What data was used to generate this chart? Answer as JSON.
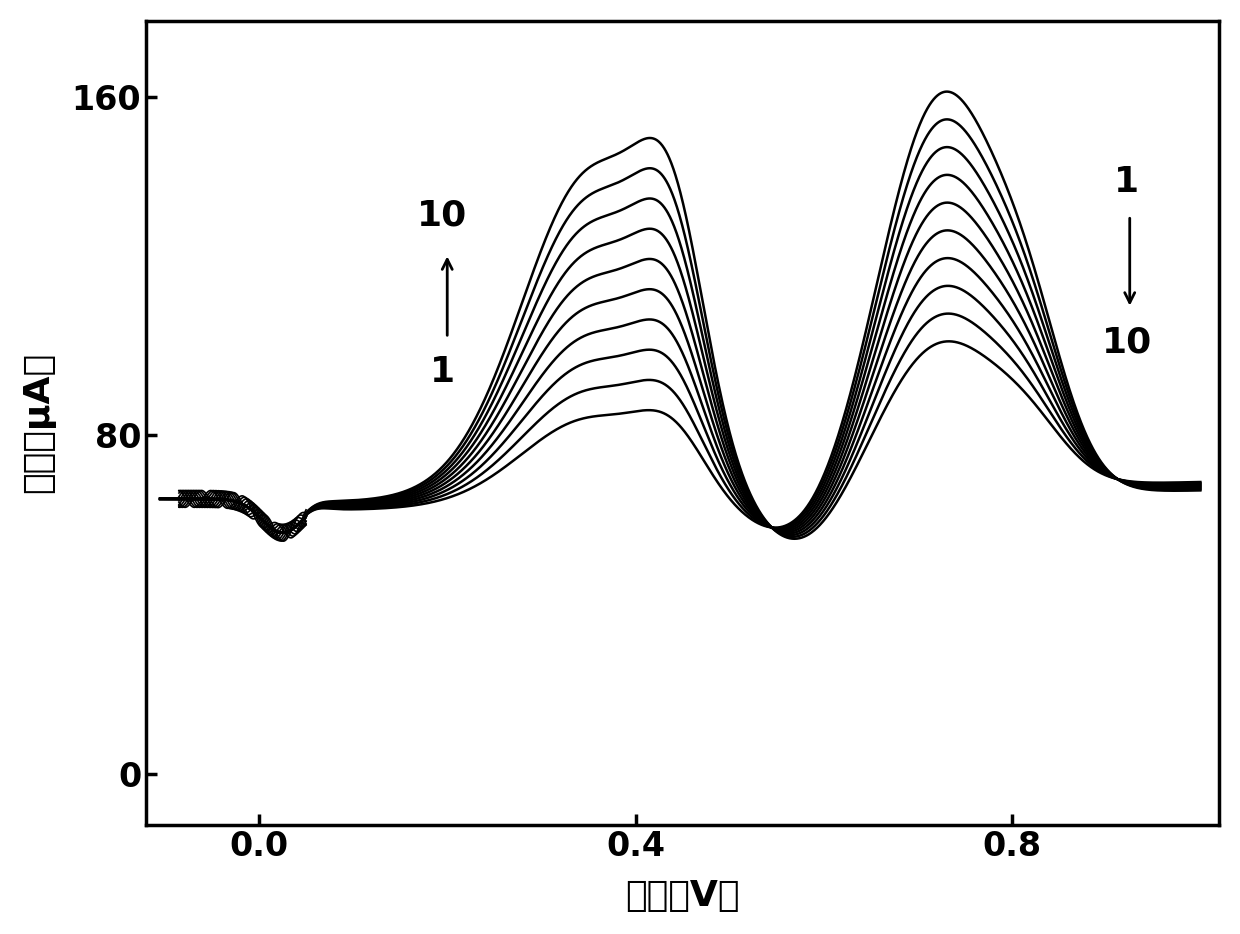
{
  "xlabel": "电压（V）",
  "ylabel": "电流（μA）",
  "xlim": [
    -0.12,
    1.02
  ],
  "ylim": [
    -12,
    178
  ],
  "yticks": [
    0,
    80,
    160
  ],
  "xticks": [
    0.0,
    0.4,
    0.8
  ],
  "n_curves": 10,
  "background_color": "#ffffff",
  "line_color": "#000000",
  "xlabel_fontsize": 26,
  "ylabel_fontsize": 26,
  "tick_fontsize": 24,
  "annotation_fontsize": 26
}
